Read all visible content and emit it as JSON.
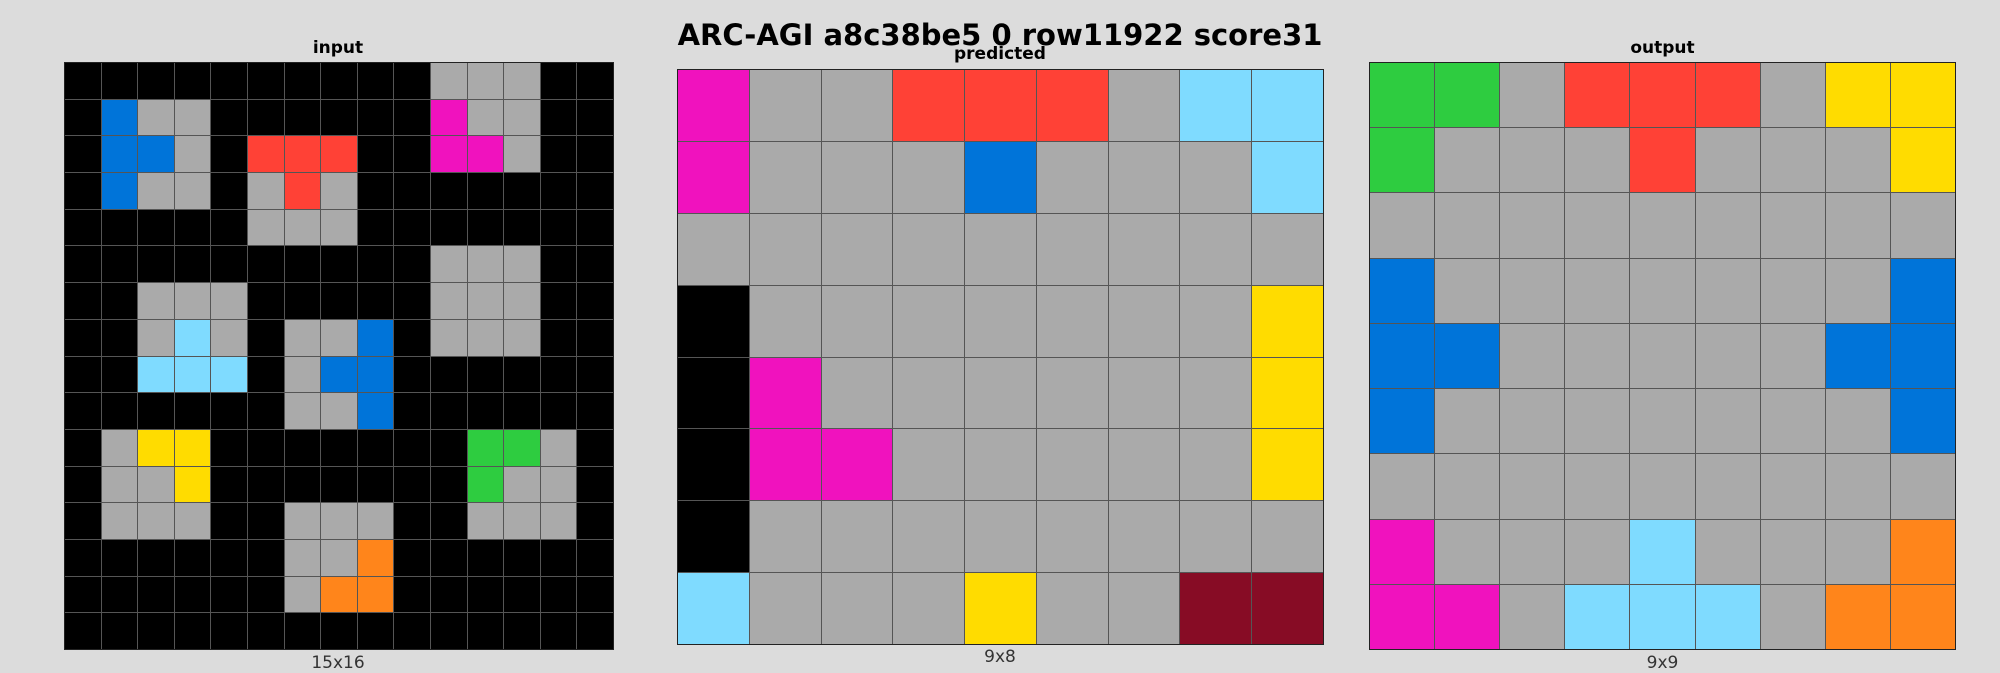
{
  "title": "ARC-AGI a8c38be5 0 row11922 score31",
  "palette": {
    "0": "#000000",
    "1": "#0074D9",
    "2": "#FF4136",
    "3": "#2ECC40",
    "4": "#FFDC00",
    "5": "#AAAAAA",
    "6": "#F012BE",
    "7": "#FF851B",
    "8": "#7FDBFF",
    "9": "#870C25"
  },
  "panels": [
    {
      "id": "input",
      "title": "input",
      "dims": "15x16",
      "grid": [
        [
          0,
          0,
          0,
          0,
          0,
          0,
          0,
          0,
          0,
          0,
          5,
          5,
          5,
          0,
          0
        ],
        [
          0,
          1,
          5,
          5,
          0,
          0,
          0,
          0,
          0,
          0,
          6,
          5,
          5,
          0,
          0
        ],
        [
          0,
          1,
          1,
          5,
          0,
          2,
          2,
          2,
          0,
          0,
          6,
          6,
          5,
          0,
          0
        ],
        [
          0,
          1,
          5,
          5,
          0,
          5,
          2,
          5,
          0,
          0,
          0,
          0,
          0,
          0,
          0
        ],
        [
          0,
          0,
          0,
          0,
          0,
          5,
          5,
          5,
          0,
          0,
          0,
          0,
          0,
          0,
          0
        ],
        [
          0,
          0,
          0,
          0,
          0,
          0,
          0,
          0,
          0,
          0,
          5,
          5,
          5,
          0,
          0
        ],
        [
          0,
          0,
          5,
          5,
          5,
          0,
          0,
          0,
          0,
          0,
          5,
          5,
          5,
          0,
          0
        ],
        [
          0,
          0,
          5,
          8,
          5,
          0,
          5,
          5,
          1,
          0,
          5,
          5,
          5,
          0,
          0
        ],
        [
          0,
          0,
          8,
          8,
          8,
          0,
          5,
          1,
          1,
          0,
          0,
          0,
          0,
          0,
          0
        ],
        [
          0,
          0,
          0,
          0,
          0,
          0,
          5,
          5,
          1,
          0,
          0,
          0,
          0,
          0,
          0
        ],
        [
          0,
          5,
          4,
          4,
          0,
          0,
          0,
          0,
          0,
          0,
          0,
          3,
          3,
          5,
          0
        ],
        [
          0,
          5,
          5,
          4,
          0,
          0,
          0,
          0,
          0,
          0,
          0,
          3,
          5,
          5,
          0
        ],
        [
          0,
          5,
          5,
          5,
          0,
          0,
          5,
          5,
          5,
          0,
          0,
          5,
          5,
          5,
          0
        ],
        [
          0,
          0,
          0,
          0,
          0,
          0,
          5,
          5,
          7,
          0,
          0,
          0,
          0,
          0,
          0
        ],
        [
          0,
          0,
          0,
          0,
          0,
          0,
          5,
          7,
          7,
          0,
          0,
          0,
          0,
          0,
          0
        ],
        [
          0,
          0,
          0,
          0,
          0,
          0,
          0,
          0,
          0,
          0,
          0,
          0,
          0,
          0,
          0
        ]
      ]
    },
    {
      "id": "predicted",
      "title": "predicted",
      "dims": "9x8",
      "grid": [
        [
          6,
          5,
          5,
          2,
          2,
          2,
          5,
          8,
          8
        ],
        [
          6,
          5,
          5,
          5,
          1,
          5,
          5,
          5,
          8
        ],
        [
          5,
          5,
          5,
          5,
          5,
          5,
          5,
          5,
          5
        ],
        [
          0,
          5,
          5,
          5,
          5,
          5,
          5,
          5,
          4
        ],
        [
          0,
          6,
          5,
          5,
          5,
          5,
          5,
          5,
          4
        ],
        [
          0,
          6,
          6,
          5,
          5,
          5,
          5,
          5,
          4
        ],
        [
          0,
          5,
          5,
          5,
          5,
          5,
          5,
          5,
          5
        ],
        [
          8,
          5,
          5,
          5,
          4,
          5,
          5,
          9,
          9
        ]
      ]
    },
    {
      "id": "output",
      "title": "output",
      "dims": "9x9",
      "grid": [
        [
          3,
          3,
          5,
          2,
          2,
          2,
          5,
          4,
          4
        ],
        [
          3,
          5,
          5,
          5,
          2,
          5,
          5,
          5,
          4
        ],
        [
          5,
          5,
          5,
          5,
          5,
          5,
          5,
          5,
          5
        ],
        [
          1,
          5,
          5,
          5,
          5,
          5,
          5,
          5,
          1
        ],
        [
          1,
          1,
          5,
          5,
          5,
          5,
          5,
          1,
          1
        ],
        [
          1,
          5,
          5,
          5,
          5,
          5,
          5,
          5,
          1
        ],
        [
          5,
          5,
          5,
          5,
          5,
          5,
          5,
          5,
          5
        ],
        [
          6,
          5,
          5,
          5,
          8,
          5,
          5,
          5,
          7
        ],
        [
          6,
          6,
          5,
          8,
          8,
          8,
          5,
          7,
          7
        ]
      ]
    }
  ]
}
